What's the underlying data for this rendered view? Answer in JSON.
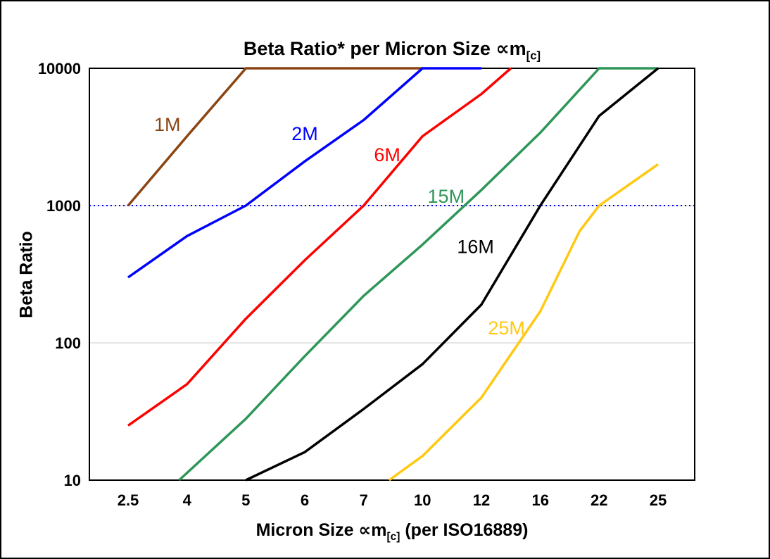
{
  "figure": {
    "background": "#ffffff",
    "border_color": "#000000"
  },
  "chart_data": {
    "type": "line",
    "title": "Beta Ratio* per Micron Size ∝m[c]",
    "title_parts": {
      "main": "Beta Ratio* per Micron Size ∝m",
      "sub": "[c]"
    },
    "ylabel": "Beta Ratio",
    "xlabel": "Micron Size ∝m[c] (per ISO16889)",
    "xlabel_parts": {
      "pre": "Micron Size ∝m",
      "sub": "[c]",
      "post": " (per ISO16889)"
    },
    "x_tick_labels": [
      "2.5",
      "4",
      "5",
      "6",
      "7",
      "10",
      "12",
      "16",
      "22",
      "25"
    ],
    "x_values": [
      2.5,
      4,
      5,
      6,
      7,
      10,
      12,
      16,
      22,
      25
    ],
    "y_scale": "log",
    "ylim": [
      10,
      10000
    ],
    "y_tick_values": [
      10,
      100,
      1000,
      10000
    ],
    "y_tick_labels": [
      "10",
      "100",
      "1000",
      "10000"
    ],
    "gridlines_y": [
      100,
      1000
    ],
    "grid_color": "#cccccc",
    "axis_color": "#000000",
    "reference_line": {
      "y": 1000,
      "color": "#0000ff"
    },
    "series": [
      {
        "name": "1M",
        "color": "#8B4513",
        "label_pos": {
          "x": 3.5,
          "y": 3500
        },
        "points": [
          [
            2.5,
            1000
          ],
          [
            4,
            3200
          ],
          [
            5,
            10000
          ],
          [
            10,
            10000
          ]
        ]
      },
      {
        "name": "2M",
        "color": "#0000FF",
        "label_pos": {
          "x": 6,
          "y": 3000
        },
        "points": [
          [
            2.5,
            300
          ],
          [
            4,
            600
          ],
          [
            5,
            1000
          ],
          [
            6,
            2100
          ],
          [
            7,
            4200
          ],
          [
            10,
            10000
          ],
          [
            12,
            10000
          ]
        ]
      },
      {
        "name": "6M",
        "color": "#FF0000",
        "label_pos": {
          "x": 8.2,
          "y": 2100
        },
        "points": [
          [
            2.5,
            25
          ],
          [
            4,
            50
          ],
          [
            5,
            150
          ],
          [
            6,
            400
          ],
          [
            7,
            1000
          ],
          [
            10,
            3200
          ],
          [
            12,
            6500
          ],
          [
            14,
            10000
          ]
        ]
      },
      {
        "name": "15M",
        "color": "#2E9658",
        "label_pos": {
          "x": 10.8,
          "y": 1050
        },
        "points": [
          [
            3.8,
            10
          ],
          [
            5,
            28
          ],
          [
            6,
            80
          ],
          [
            7,
            220
          ],
          [
            10,
            520
          ],
          [
            12,
            1300
          ],
          [
            16,
            3400
          ],
          [
            22,
            10000
          ],
          [
            25,
            10000
          ]
        ]
      },
      {
        "name": "16M",
        "color": "#000000",
        "label_pos": {
          "x": 11.8,
          "y": 450
        },
        "points": [
          [
            5,
            10
          ],
          [
            6,
            16
          ],
          [
            7,
            33
          ],
          [
            10,
            70
          ],
          [
            12,
            190
          ],
          [
            16,
            1000
          ],
          [
            22,
            4500
          ],
          [
            25,
            10000
          ]
        ]
      },
      {
        "name": "25M",
        "color": "#FFC913",
        "label_pos": {
          "x": 13.7,
          "y": 115
        },
        "points": [
          [
            8.3,
            10
          ],
          [
            10,
            15
          ],
          [
            12,
            40
          ],
          [
            16,
            170
          ],
          [
            20,
            650
          ],
          [
            22,
            1000
          ],
          [
            25,
            2000
          ]
        ]
      }
    ]
  }
}
